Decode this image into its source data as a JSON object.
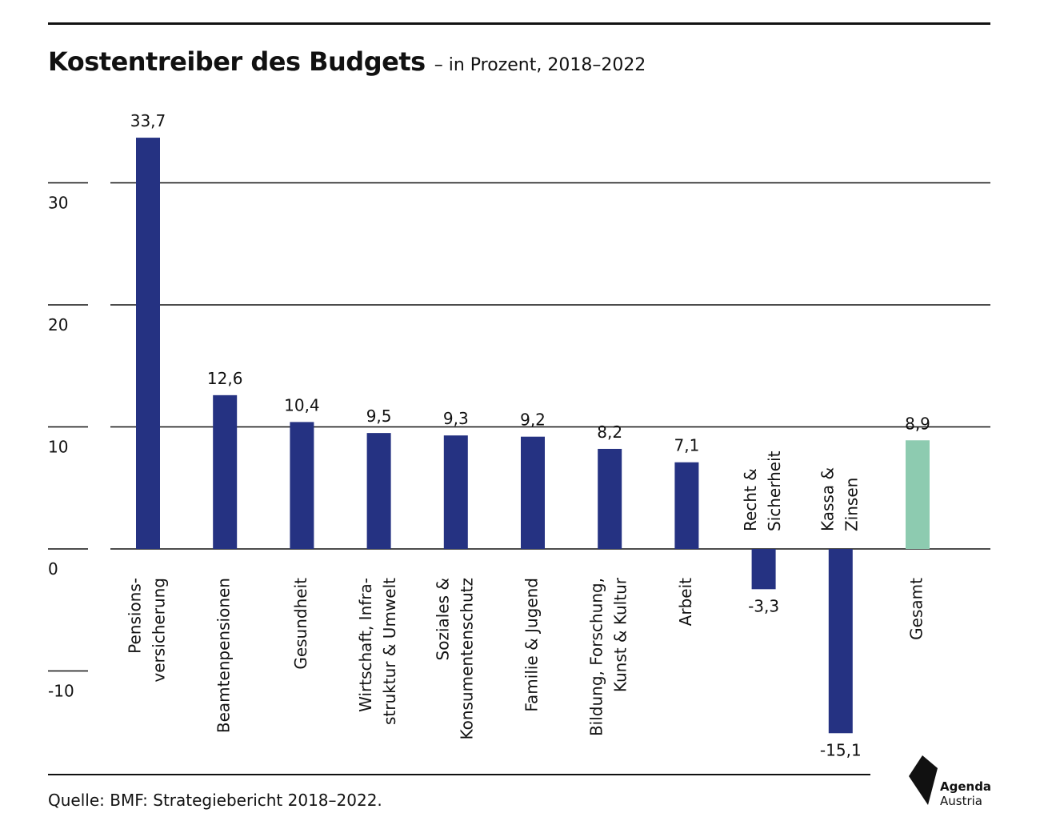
{
  "header": {
    "title": "Kostentreiber des Budgets",
    "subtitle": "– in Prozent, 2018–2022"
  },
  "footer": {
    "source": "Quelle: BMF: Strategiebericht 2018–2022.",
    "logo_line1": "Agenda",
    "logo_line2": "Austria"
  },
  "colors": {
    "bar": "#253282",
    "total_bar": "#8dcbb0",
    "grid": "#111111",
    "text": "#111111"
  },
  "chart_data": {
    "type": "bar",
    "title": "Kostentreiber des Budgets",
    "subtitle": "– in Prozent, 2018–2022",
    "xlabel": "",
    "ylabel": "",
    "ylim": [
      -10,
      35
    ],
    "yticks": [
      -10,
      0,
      10,
      20,
      30
    ],
    "ytick_labels": [
      "-10",
      "0",
      "10",
      "20",
      "30"
    ],
    "grid": true,
    "categories": [
      [
        "Pensions-",
        "versicherung"
      ],
      [
        "Beamtenpensionen"
      ],
      [
        "Gesundheit"
      ],
      [
        "Wirtschaft, Infra-",
        "struktur & Umwelt"
      ],
      [
        "Soziales &",
        "Konsumentenschutz"
      ],
      [
        "Familie & Jugend"
      ],
      [
        "Bildung, Forschung,",
        "Kunst & Kultur"
      ],
      [
        "Arbeit"
      ],
      [
        "Recht &",
        "Sicherheit"
      ],
      [
        "Kassa &",
        "Zinsen"
      ],
      [
        "Gesamt"
      ]
    ],
    "values": [
      33.7,
      12.6,
      10.4,
      9.5,
      9.3,
      9.2,
      8.2,
      7.1,
      -3.3,
      -15.1,
      8.9
    ],
    "value_labels": [
      "33,7",
      "12,6",
      "10,4",
      "9,5",
      "9,3",
      "9,2",
      "8,2",
      "7,1",
      "-3,3",
      "-15,1",
      "8,9"
    ],
    "highlight": [
      "",
      "",
      "",
      "",
      "",
      "",
      "",
      "",
      "",
      "",
      "total"
    ]
  }
}
